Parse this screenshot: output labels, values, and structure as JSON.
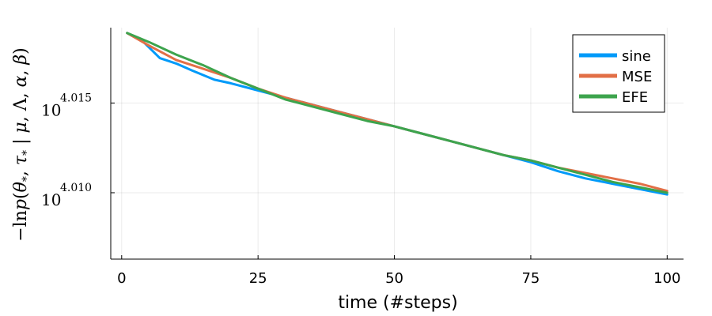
{
  "chart_data": {
    "type": "line",
    "xlabel": "time (#steps)",
    "ylabel": "−ln p(θ*, τ* | μ, Λ, α, β)",
    "xlim": [
      0,
      100
    ],
    "ylim": [
      4.0063,
      4.0192
    ],
    "y_scale": "log",
    "x_ticks": [
      0,
      25,
      50,
      75,
      100
    ],
    "y_ticks": [
      {
        "value": 4.01,
        "base": "10",
        "exp": "4.010"
      },
      {
        "value": 4.015,
        "base": "10",
        "exp": "4.015"
      }
    ],
    "grid": true,
    "legend_position": "top-right",
    "series": [
      {
        "name": "sine",
        "color": "#009af9",
        "x": [
          1,
          4,
          7,
          10,
          13,
          17,
          20,
          25,
          30,
          35,
          40,
          45,
          50,
          55,
          60,
          65,
          70,
          75,
          80,
          85,
          90,
          95,
          100
        ],
        "y": [
          4.0189,
          4.0184,
          4.0175,
          4.0172,
          4.0168,
          4.0163,
          4.0161,
          4.0157,
          4.0153,
          4.0149,
          4.0145,
          4.0141,
          4.0137,
          4.0133,
          4.0129,
          4.0125,
          4.0121,
          4.0117,
          4.0112,
          4.0108,
          4.0105,
          4.0102,
          4.0099
        ]
      },
      {
        "name": "MSE",
        "color": "#e26f46",
        "x": [
          1,
          5,
          10,
          15,
          20,
          25,
          30,
          35,
          40,
          45,
          50,
          55,
          60,
          65,
          70,
          75,
          80,
          85,
          90,
          95,
          100
        ],
        "y": [
          4.0189,
          4.0182,
          4.0174,
          4.0169,
          4.0164,
          4.0158,
          4.0153,
          4.0149,
          4.0145,
          4.0141,
          4.0137,
          4.0133,
          4.0129,
          4.0125,
          4.0121,
          4.0118,
          4.0114,
          4.0111,
          4.0108,
          4.0105,
          4.0101
        ]
      },
      {
        "name": "EFE",
        "color": "#3da44d",
        "x": [
          1,
          5,
          10,
          15,
          20,
          25,
          30,
          35,
          40,
          45,
          50,
          55,
          60,
          65,
          70,
          75,
          80,
          85,
          90,
          95,
          100
        ],
        "y": [
          4.0189,
          4.0184,
          4.0177,
          4.0171,
          4.0164,
          4.0158,
          4.0152,
          4.0148,
          4.0144,
          4.014,
          4.0137,
          4.0133,
          4.0129,
          4.0125,
          4.0121,
          4.0118,
          4.0114,
          4.011,
          4.0106,
          4.0103,
          4.01
        ]
      }
    ]
  }
}
